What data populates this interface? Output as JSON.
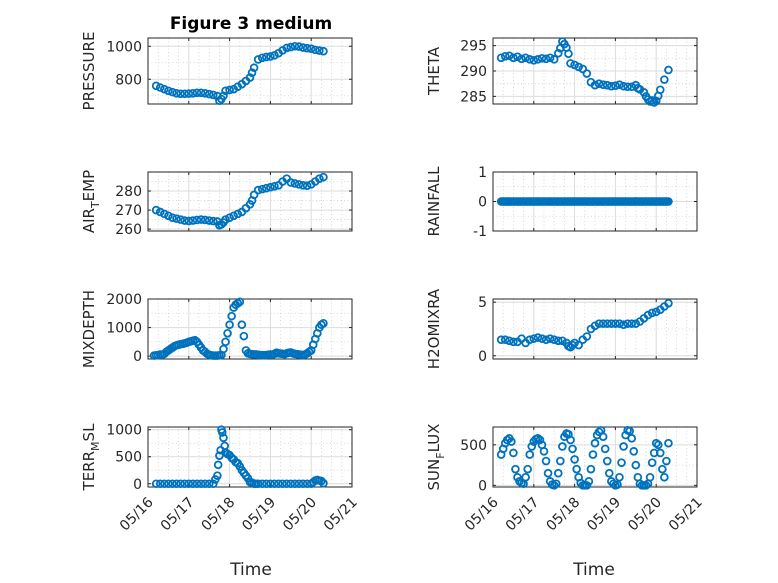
{
  "figure": {
    "title": "Figure 3 medium",
    "marker_color": "#0072BD",
    "x_axis_label": "Time"
  },
  "chart_data": [
    {
      "type": "scatter",
      "ylabel": "PRESSURE",
      "xlim": [
        16,
        21
      ],
      "ylim": [
        650,
        1050
      ],
      "yticks": [
        800,
        1000
      ],
      "yminor": [
        700,
        900
      ],
      "x": [
        16.2,
        16.3,
        16.4,
        16.5,
        16.6,
        16.7,
        16.8,
        16.9,
        17.0,
        17.1,
        17.2,
        17.3,
        17.4,
        17.5,
        17.6,
        17.7,
        17.75,
        17.8,
        17.85,
        17.9,
        18.0,
        18.1,
        18.2,
        18.3,
        18.4,
        18.5,
        18.55,
        18.6,
        18.7,
        18.8,
        18.9,
        19.0,
        19.1,
        19.2,
        19.3,
        19.4,
        19.5,
        19.6,
        19.7,
        19.8,
        19.9,
        20.0,
        20.1,
        20.2,
        20.3
      ],
      "y": [
        760,
        750,
        740,
        730,
        722,
        715,
        712,
        712,
        713,
        715,
        718,
        718,
        715,
        710,
        705,
        698,
        670,
        680,
        700,
        730,
        735,
        740,
        755,
        770,
        790,
        810,
        840,
        870,
        920,
        930,
        935,
        938,
        945,
        958,
        975,
        990,
        995,
        1000,
        998,
        992,
        988,
        985,
        978,
        974,
        970
      ]
    },
    {
      "type": "scatter",
      "ylabel": "THETA",
      "xlim": [
        16,
        21
      ],
      "ylim": [
        283.5,
        296.5
      ],
      "yticks": [
        285,
        290,
        295
      ],
      "yminor": [
        287.5,
        292.5
      ],
      "x": [
        16.2,
        16.3,
        16.4,
        16.5,
        16.6,
        16.7,
        16.8,
        16.9,
        17.0,
        17.1,
        17.2,
        17.3,
        17.4,
        17.5,
        17.6,
        17.65,
        17.7,
        17.75,
        17.8,
        17.85,
        17.9,
        18.0,
        18.1,
        18.2,
        18.3,
        18.4,
        18.5,
        18.6,
        18.7,
        18.8,
        18.9,
        19.0,
        19.1,
        19.2,
        19.3,
        19.4,
        19.5,
        19.55,
        19.6,
        19.7,
        19.75,
        19.8,
        19.85,
        19.9,
        19.95,
        20.0,
        20.05,
        20.1,
        20.2,
        20.3
      ],
      "y": [
        292.6,
        292.9,
        293.0,
        292.6,
        292.8,
        292.4,
        292.6,
        292.3,
        292.1,
        292.3,
        292.5,
        292.4,
        292.6,
        292.3,
        293.5,
        294.5,
        295.8,
        295.3,
        294.6,
        293.4,
        291.5,
        291.2,
        290.8,
        290.4,
        289.5,
        287.8,
        287.2,
        287.5,
        287.3,
        287.2,
        287.0,
        287.1,
        287.3,
        287.0,
        286.9,
        286.9,
        287.2,
        286.6,
        286.4,
        285.8,
        285.0,
        284.4,
        284.0,
        284.2,
        283.8,
        284.1,
        285.1,
        286.3,
        288.3,
        290.2
      ]
    },
    {
      "type": "scatter",
      "ylabel": "AIR_T_EMP",
      "ylabel_parts": {
        "pre": "AIR",
        "sub": "T",
        "post": "EMP"
      },
      "xlim": [
        16,
        21
      ],
      "ylim": [
        259,
        290
      ],
      "yticks": [
        260,
        270,
        280
      ],
      "yminor": [
        265,
        275,
        285
      ],
      "x": [
        16.2,
        16.3,
        16.4,
        16.5,
        16.6,
        16.7,
        16.8,
        16.9,
        17.0,
        17.1,
        17.2,
        17.3,
        17.4,
        17.5,
        17.6,
        17.7,
        17.75,
        17.8,
        17.85,
        17.9,
        18.0,
        18.1,
        18.2,
        18.3,
        18.4,
        18.5,
        18.55,
        18.6,
        18.7,
        18.8,
        18.9,
        19.0,
        19.1,
        19.2,
        19.3,
        19.4,
        19.5,
        19.6,
        19.7,
        19.8,
        19.9,
        20.0,
        20.1,
        20.2,
        20.3
      ],
      "y": [
        270,
        269,
        268,
        267,
        266,
        265.5,
        265,
        264.5,
        264.3,
        264.5,
        264.8,
        265,
        264.8,
        264.5,
        264.2,
        264,
        262,
        262.5,
        263.5,
        265,
        266,
        267,
        268,
        269,
        271,
        273,
        275,
        278,
        280.5,
        281,
        281.5,
        282,
        282.5,
        283,
        285,
        286.5,
        284.5,
        284,
        283.5,
        283,
        282.8,
        283.5,
        285,
        286.5,
        287.3
      ]
    },
    {
      "type": "scatter",
      "ylabel": "RAINFALL",
      "xlim": [
        16,
        21
      ],
      "ylim": [
        -1,
        1
      ],
      "yticks": [
        -1,
        0,
        1
      ],
      "yminor": [
        -0.5,
        0.5
      ],
      "x_range": [
        16.2,
        20.3
      ],
      "x_step": 0.025,
      "constant_y": 0
    },
    {
      "type": "scatter",
      "ylabel": "MIXDEPTH",
      "xlim": [
        16,
        21
      ],
      "ylim": [
        -100,
        2000
      ],
      "yticks": [
        0,
        1000,
        2000
      ],
      "yminor": [
        500,
        1500
      ],
      "x": [
        16.15,
        16.2,
        16.25,
        16.3,
        16.35,
        16.4,
        16.45,
        16.5,
        16.55,
        16.6,
        16.65,
        16.7,
        16.75,
        16.8,
        16.85,
        16.9,
        16.95,
        17.0,
        17.05,
        17.1,
        17.15,
        17.2,
        17.25,
        17.3,
        17.35,
        17.4,
        17.45,
        17.5,
        17.55,
        17.6,
        17.65,
        17.7,
        17.75,
        17.8,
        17.85,
        17.9,
        17.95,
        18.0,
        18.05,
        18.1,
        18.15,
        18.2,
        18.25,
        18.3,
        18.35,
        18.4,
        18.45,
        18.5,
        18.55,
        18.6,
        18.65,
        18.7,
        18.75,
        18.8,
        18.85,
        18.9,
        18.95,
        19.0,
        19.05,
        19.1,
        19.15,
        19.2,
        19.25,
        19.3,
        19.35,
        19.4,
        19.45,
        19.5,
        19.55,
        19.6,
        19.65,
        19.7,
        19.75,
        19.8,
        19.85,
        19.9,
        19.95,
        20.0,
        20.05,
        20.1,
        20.15,
        20.2,
        20.25,
        20.3
      ],
      "y": [
        20,
        30,
        40,
        60,
        50,
        80,
        150,
        200,
        250,
        300,
        350,
        380,
        400,
        420,
        430,
        450,
        470,
        500,
        520,
        540,
        560,
        500,
        400,
        300,
        200,
        150,
        80,
        50,
        30,
        20,
        20,
        20,
        30,
        40,
        250,
        500,
        800,
        1100,
        1400,
        1700,
        1800,
        1850,
        1900,
        1100,
        700,
        200,
        100,
        80,
        70,
        60,
        60,
        50,
        40,
        40,
        30,
        40,
        50,
        60,
        50,
        80,
        120,
        100,
        90,
        80,
        70,
        100,
        120,
        130,
        100,
        80,
        70,
        60,
        50,
        40,
        60,
        100,
        150,
        200,
        400,
        600,
        800,
        1000,
        1100,
        1150
      ]
    },
    {
      "type": "scatter",
      "ylabel": "H2OMIXRA",
      "xlim": [
        16,
        21
      ],
      "ylim": [
        -0.3,
        5.3
      ],
      "yticks": [
        0,
        5
      ],
      "yminor": [
        2.5
      ],
      "x": [
        16.2,
        16.3,
        16.4,
        16.5,
        16.6,
        16.7,
        16.8,
        16.9,
        17.0,
        17.1,
        17.2,
        17.3,
        17.4,
        17.5,
        17.6,
        17.7,
        17.8,
        17.85,
        17.9,
        17.95,
        18.0,
        18.1,
        18.2,
        18.3,
        18.4,
        18.5,
        18.6,
        18.7,
        18.8,
        18.9,
        19.0,
        19.1,
        19.2,
        19.3,
        19.4,
        19.5,
        19.6,
        19.7,
        19.8,
        19.9,
        20.0,
        20.1,
        20.2,
        20.3
      ],
      "y": [
        1.5,
        1.5,
        1.4,
        1.3,
        1.3,
        1.6,
        1.2,
        1.5,
        1.6,
        1.7,
        1.6,
        1.5,
        1.6,
        1.5,
        1.4,
        1.4,
        1.2,
        0.9,
        0.8,
        1.0,
        1.2,
        1.0,
        1.5,
        1.8,
        2.5,
        2.8,
        3.0,
        3.0,
        3.0,
        3.0,
        3.0,
        3.0,
        2.9,
        3.0,
        3.0,
        3.0,
        3.2,
        3.5,
        3.8,
        4.0,
        4.1,
        4.3,
        4.6,
        4.9
      ]
    },
    {
      "type": "scatter",
      "ylabel": "TERR_M_SL",
      "ylabel_parts": {
        "pre": "TERR",
        "sub": "M",
        "post": "SL"
      },
      "xlim": [
        16,
        21
      ],
      "ylim": [
        -60,
        1050
      ],
      "yticks": [
        0,
        500,
        1000
      ],
      "yminor": [
        250,
        750
      ],
      "x": [
        16.2,
        16.3,
        16.4,
        16.5,
        16.6,
        16.7,
        16.8,
        16.9,
        17.0,
        17.1,
        17.2,
        17.3,
        17.4,
        17.5,
        17.6,
        17.65,
        17.7,
        17.72,
        17.75,
        17.78,
        17.8,
        17.82,
        17.85,
        17.88,
        17.9,
        17.95,
        18.0,
        18.05,
        18.1,
        18.15,
        18.2,
        18.25,
        18.3,
        18.35,
        18.4,
        18.45,
        18.5,
        18.55,
        18.6,
        18.65,
        18.7,
        18.8,
        18.9,
        19.0,
        19.1,
        19.2,
        19.3,
        19.4,
        19.5,
        19.6,
        19.7,
        19.8,
        19.9,
        20.0,
        20.05,
        20.1,
        20.15,
        20.2,
        20.25,
        20.3
      ],
      "y": [
        0,
        0,
        0,
        0,
        0,
        0,
        0,
        0,
        0,
        0,
        0,
        0,
        0,
        0,
        0,
        80,
        150,
        350,
        520,
        620,
        1000,
        950,
        850,
        700,
        580,
        550,
        530,
        480,
        450,
        400,
        380,
        320,
        250,
        200,
        150,
        100,
        30,
        20,
        0,
        0,
        0,
        0,
        0,
        0,
        0,
        0,
        0,
        0,
        0,
        0,
        0,
        0,
        0,
        0,
        30,
        60,
        70,
        60,
        50,
        10
      ]
    },
    {
      "type": "scatter",
      "ylabel": "SUN_F_LUX",
      "ylabel_parts": {
        "pre": "SUN",
        "sub": "F",
        "post": "LUX"
      },
      "xlim": [
        16,
        21
      ],
      "ylim": [
        -20,
        720
      ],
      "yticks": [
        0,
        500
      ],
      "yminor": [
        250
      ],
      "x": [
        16.2,
        16.25,
        16.3,
        16.35,
        16.4,
        16.45,
        16.5,
        16.55,
        16.6,
        16.65,
        16.7,
        16.75,
        16.8,
        16.85,
        16.9,
        16.95,
        17.0,
        17.05,
        17.1,
        17.15,
        17.2,
        17.25,
        17.3,
        17.35,
        17.4,
        17.45,
        17.5,
        17.55,
        17.6,
        17.65,
        17.7,
        17.75,
        17.8,
        17.85,
        17.9,
        17.95,
        18.0,
        18.05,
        18.1,
        18.15,
        18.2,
        18.25,
        18.3,
        18.35,
        18.4,
        18.45,
        18.5,
        18.55,
        18.6,
        18.65,
        18.7,
        18.75,
        18.8,
        18.85,
        18.9,
        18.95,
        19.0,
        19.05,
        19.1,
        19.15,
        19.2,
        19.25,
        19.3,
        19.35,
        19.4,
        19.45,
        19.5,
        19.55,
        19.6,
        19.65,
        19.7,
        19.75,
        19.8,
        19.85,
        19.9,
        19.95,
        20.0,
        20.05,
        20.1,
        20.15,
        20.2,
        20.25,
        20.3
      ],
      "y": [
        380,
        450,
        520,
        560,
        580,
        540,
        400,
        200,
        100,
        50,
        30,
        20,
        100,
        200,
        380,
        480,
        540,
        570,
        580,
        560,
        500,
        420,
        300,
        150,
        50,
        10,
        0,
        20,
        150,
        300,
        480,
        600,
        640,
        630,
        560,
        450,
        320,
        200,
        100,
        30,
        0,
        0,
        0,
        50,
        200,
        380,
        520,
        620,
        660,
        680,
        600,
        450,
        300,
        150,
        50,
        20,
        0,
        10,
        100,
        280,
        480,
        620,
        680,
        670,
        580,
        420,
        250,
        100,
        20,
        0,
        0,
        0,
        20,
        100,
        280,
        400,
        520,
        500,
        400,
        200,
        100,
        300,
        520
      ]
    }
  ],
  "x_tick_labels": [
    "05/16",
    "05/17",
    "05/18",
    "05/19",
    "05/20",
    "05/21"
  ],
  "x_tick_values": [
    16,
    17,
    18,
    19,
    20,
    21
  ]
}
